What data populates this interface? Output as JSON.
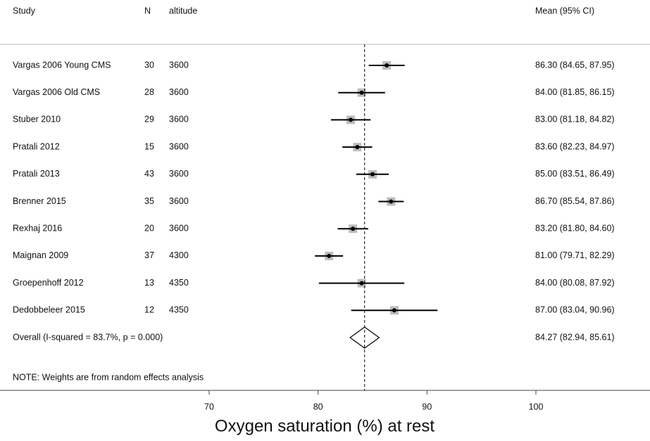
{
  "chart_data": {
    "type": "forest",
    "columns": [
      "Study",
      "N",
      "altitude",
      "Mean (95% CI)"
    ],
    "categories": [
      "Vargas 2006 Young CMS",
      "Vargas 2006 Old CMS",
      "Stuber 2010",
      "Pratali 2012",
      "Pratali 2013",
      "Brenner 2015",
      "Rexhaj 2016",
      "Maignan 2009",
      "Groepenhoff 2012",
      "Dedobbeleer 2015"
    ],
    "n": [
      30,
      28,
      29,
      15,
      43,
      35,
      20,
      37,
      13,
      12
    ],
    "altitude": [
      3600,
      3600,
      3600,
      3600,
      3600,
      3600,
      3600,
      4300,
      4350,
      4350
    ],
    "values": [
      86.3,
      84.0,
      83.0,
      83.6,
      85.0,
      86.7,
      83.2,
      81.0,
      84.0,
      87.0
    ],
    "lower": [
      84.65,
      81.85,
      81.18,
      82.23,
      83.51,
      85.54,
      81.8,
      79.71,
      80.08,
      83.04
    ],
    "upper": [
      87.95,
      86.15,
      84.82,
      84.97,
      86.49,
      87.86,
      84.6,
      82.29,
      87.92,
      90.96
    ],
    "value_labels": [
      "86.30 (84.65, 87.95)",
      "84.00 (81.85, 86.15)",
      "83.00 (81.18, 84.82)",
      "83.60 (82.23, 84.97)",
      "85.00 (83.51, 86.49)",
      "86.70 (85.54, 87.86)",
      "83.20 (81.80, 84.60)",
      "81.00 (79.71, 82.29)",
      "84.00 (80.08, 87.92)",
      "87.00 (83.04, 90.96)"
    ],
    "overall": {
      "label": "Overall  (I-squared = 83.7%, p = 0.000)",
      "value": 84.27,
      "lower": 82.94,
      "upper": 85.61,
      "value_label": "84.27 (82.94, 85.61)"
    },
    "note": "NOTE: Weights are from random effects analysis",
    "xlabel": "Oxygen saturation (%) at rest",
    "xlim": [
      70,
      100
    ],
    "xticks": [
      70,
      80,
      90,
      100
    ]
  }
}
